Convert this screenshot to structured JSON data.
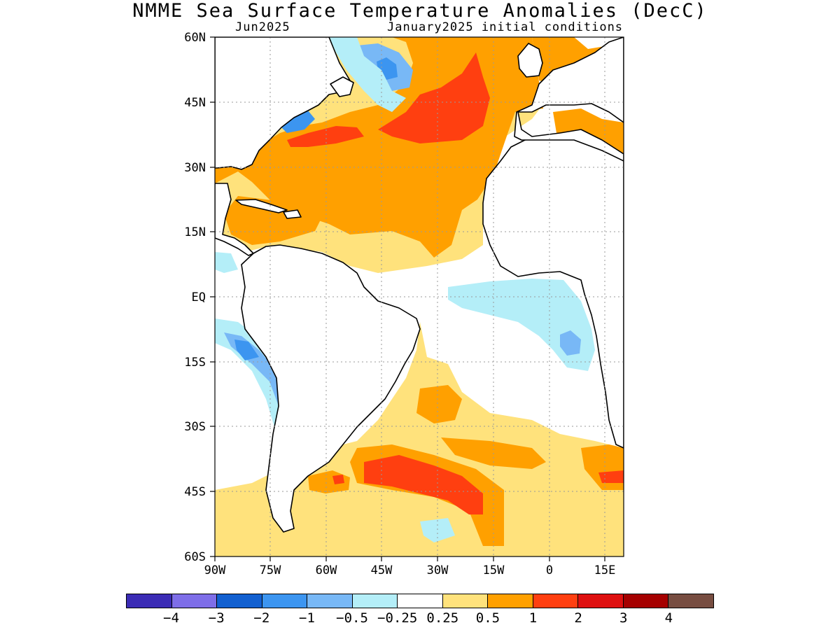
{
  "title": "NMME Sea Surface Temperature Anomalies (DecC)",
  "subtitle_left": "Jun2025",
  "subtitle_right": "January2025 initial conditions",
  "map": {
    "lon_range": [
      -90,
      20
    ],
    "lat_range": [
      -60,
      60
    ],
    "lat_labels": [
      "60N",
      "45N",
      "30N",
      "15N",
      "EQ",
      "15S",
      "30S",
      "45S",
      "60S"
    ],
    "lon_labels": [
      "90W",
      "75W",
      "60W",
      "45W",
      "30W",
      "15W",
      "0",
      "15E"
    ]
  },
  "colorbar": {
    "colors": [
      "#3b2cb5",
      "#7e6ee8",
      "#1260d0",
      "#3c95f0",
      "#78b8f6",
      "#b4eef8",
      "#ffffff",
      "#ffe27c",
      "#ffa000",
      "#ff3f10",
      "#de1010",
      "#a50000",
      "#774d41"
    ],
    "labels": [
      "−4",
      "−3",
      "−2",
      "−1",
      "−0.5",
      "−0.25",
      "0.25",
      "0.5",
      "1",
      "2",
      "3",
      "4"
    ]
  }
}
